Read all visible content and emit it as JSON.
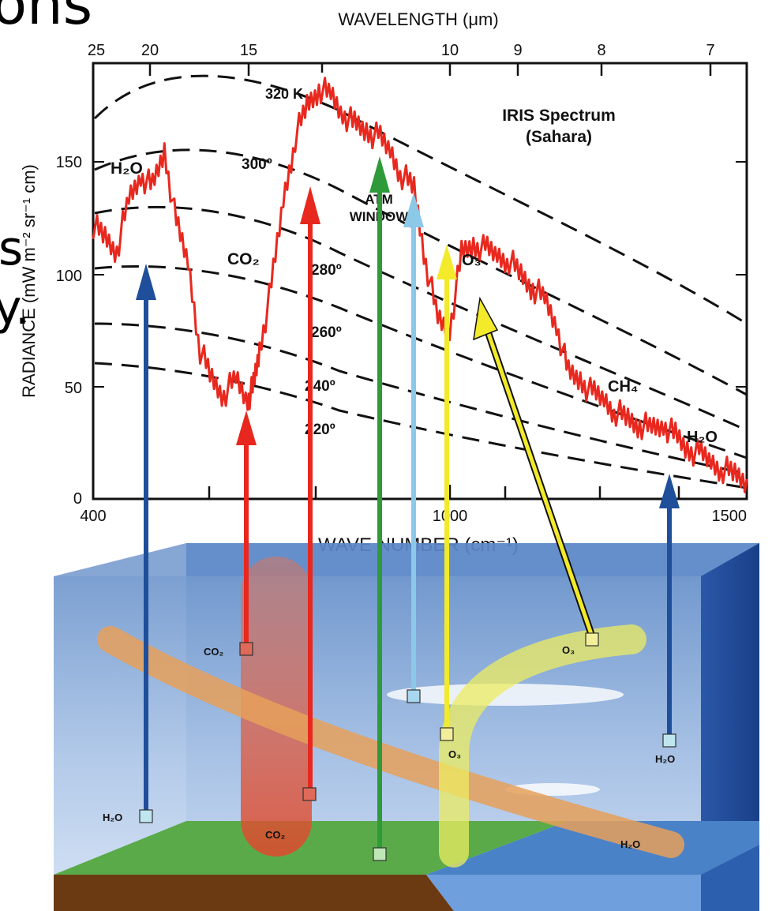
{
  "header_fragments": {
    "top_left": "ons",
    "side_left_1": "s",
    "side_left_2": "y."
  },
  "top_axis": {
    "label": "WAVELENGTH (μm)",
    "ticks": [
      "25",
      "20",
      "15",
      "10",
      "9",
      "8",
      "7"
    ]
  },
  "left_axis": {
    "label": "RADIANCE (mW m⁻² sr⁻¹ cm)",
    "ticks": [
      "0",
      "50",
      "100",
      "150"
    ]
  },
  "bottom_axis": {
    "label": "WAVE NUMBER (cm⁻¹)",
    "ticks": [
      "400",
      "1000",
      "1500"
    ]
  },
  "chart_title": {
    "line1": "IRIS Spectrum",
    "line2": "(Sahara)"
  },
  "blackbody_labels": [
    "320 K",
    "300º",
    "280º",
    "260º",
    "240º",
    "220º"
  ],
  "band_labels": {
    "h2o_left": "H₂O",
    "co2": "CO₂",
    "atm_window_1": "ATM",
    "atm_window_2": "WINDOW",
    "o3": "O₃",
    "ch4": "CH₄",
    "h2o_right": "H₂O"
  },
  "atmosphere_labels": {
    "co2_cube": "CO₂",
    "co2_surface": "CO₂",
    "h2o_ground": "H₂O",
    "o3_upper": "O₃",
    "o3_lower": "O₃",
    "h2o_right": "H₂O",
    "h2o_band": "H₂O"
  },
  "colors": {
    "spectrum": "#e8281e",
    "h2o_arrow": "#1f4f9a",
    "co2_arrow": "#e8281e",
    "window_arrow": "#2e9a3a",
    "light_arrow": "#8cc8e8",
    "o3_arrow": "#f2ea2a",
    "box_front": "#8fb4df",
    "box_top": "#6d93c9",
    "ground": "#5aaa4a",
    "soil": "#6b3a12",
    "water": "#5f8fd0"
  },
  "chart_data": {
    "type": "line",
    "x": [
      400,
      420,
      440,
      460,
      480,
      500,
      520,
      540,
      560,
      580,
      600,
      620,
      640,
      660,
      670,
      680,
      700,
      720,
      740,
      760,
      780,
      800,
      820,
      840,
      860,
      880,
      900,
      920,
      940,
      960,
      980,
      1000,
      1020,
      1040,
      1060,
      1080,
      1100,
      1120,
      1140,
      1160,
      1180,
      1200,
      1220,
      1240,
      1260,
      1280,
      1300,
      1320,
      1340,
      1360,
      1380,
      1400,
      1420,
      1440,
      1460,
      1480,
      1500
    ],
    "series": [
      {
        "values": [
          110,
          105,
          100,
          120,
          130,
          125,
          140,
          110,
          95,
          60,
          48,
          42,
          48,
          40,
          45,
          60,
          85,
          120,
          145,
          158,
          165,
          162,
          155,
          150,
          148,
          145,
          140,
          130,
          125,
          95,
          72,
          68,
          98,
          102,
          100,
          98,
          96,
          90,
          85,
          80,
          70,
          50,
          48,
          42,
          40,
          35,
          32,
          30,
          28,
          30,
          25,
          20,
          18,
          15,
          12,
          10,
          8
        ]
      }
    ],
    "xlabel": "WAVE NUMBER (cm⁻¹)",
    "ylabel": "RADIANCE (mW m⁻² sr⁻¹ cm)",
    "xlim": [
      400,
      1500
    ],
    "ylim": [
      0,
      175
    ],
    "title": "IRIS Spectrum (Sahara)",
    "grid": false,
    "legend": "none"
  }
}
